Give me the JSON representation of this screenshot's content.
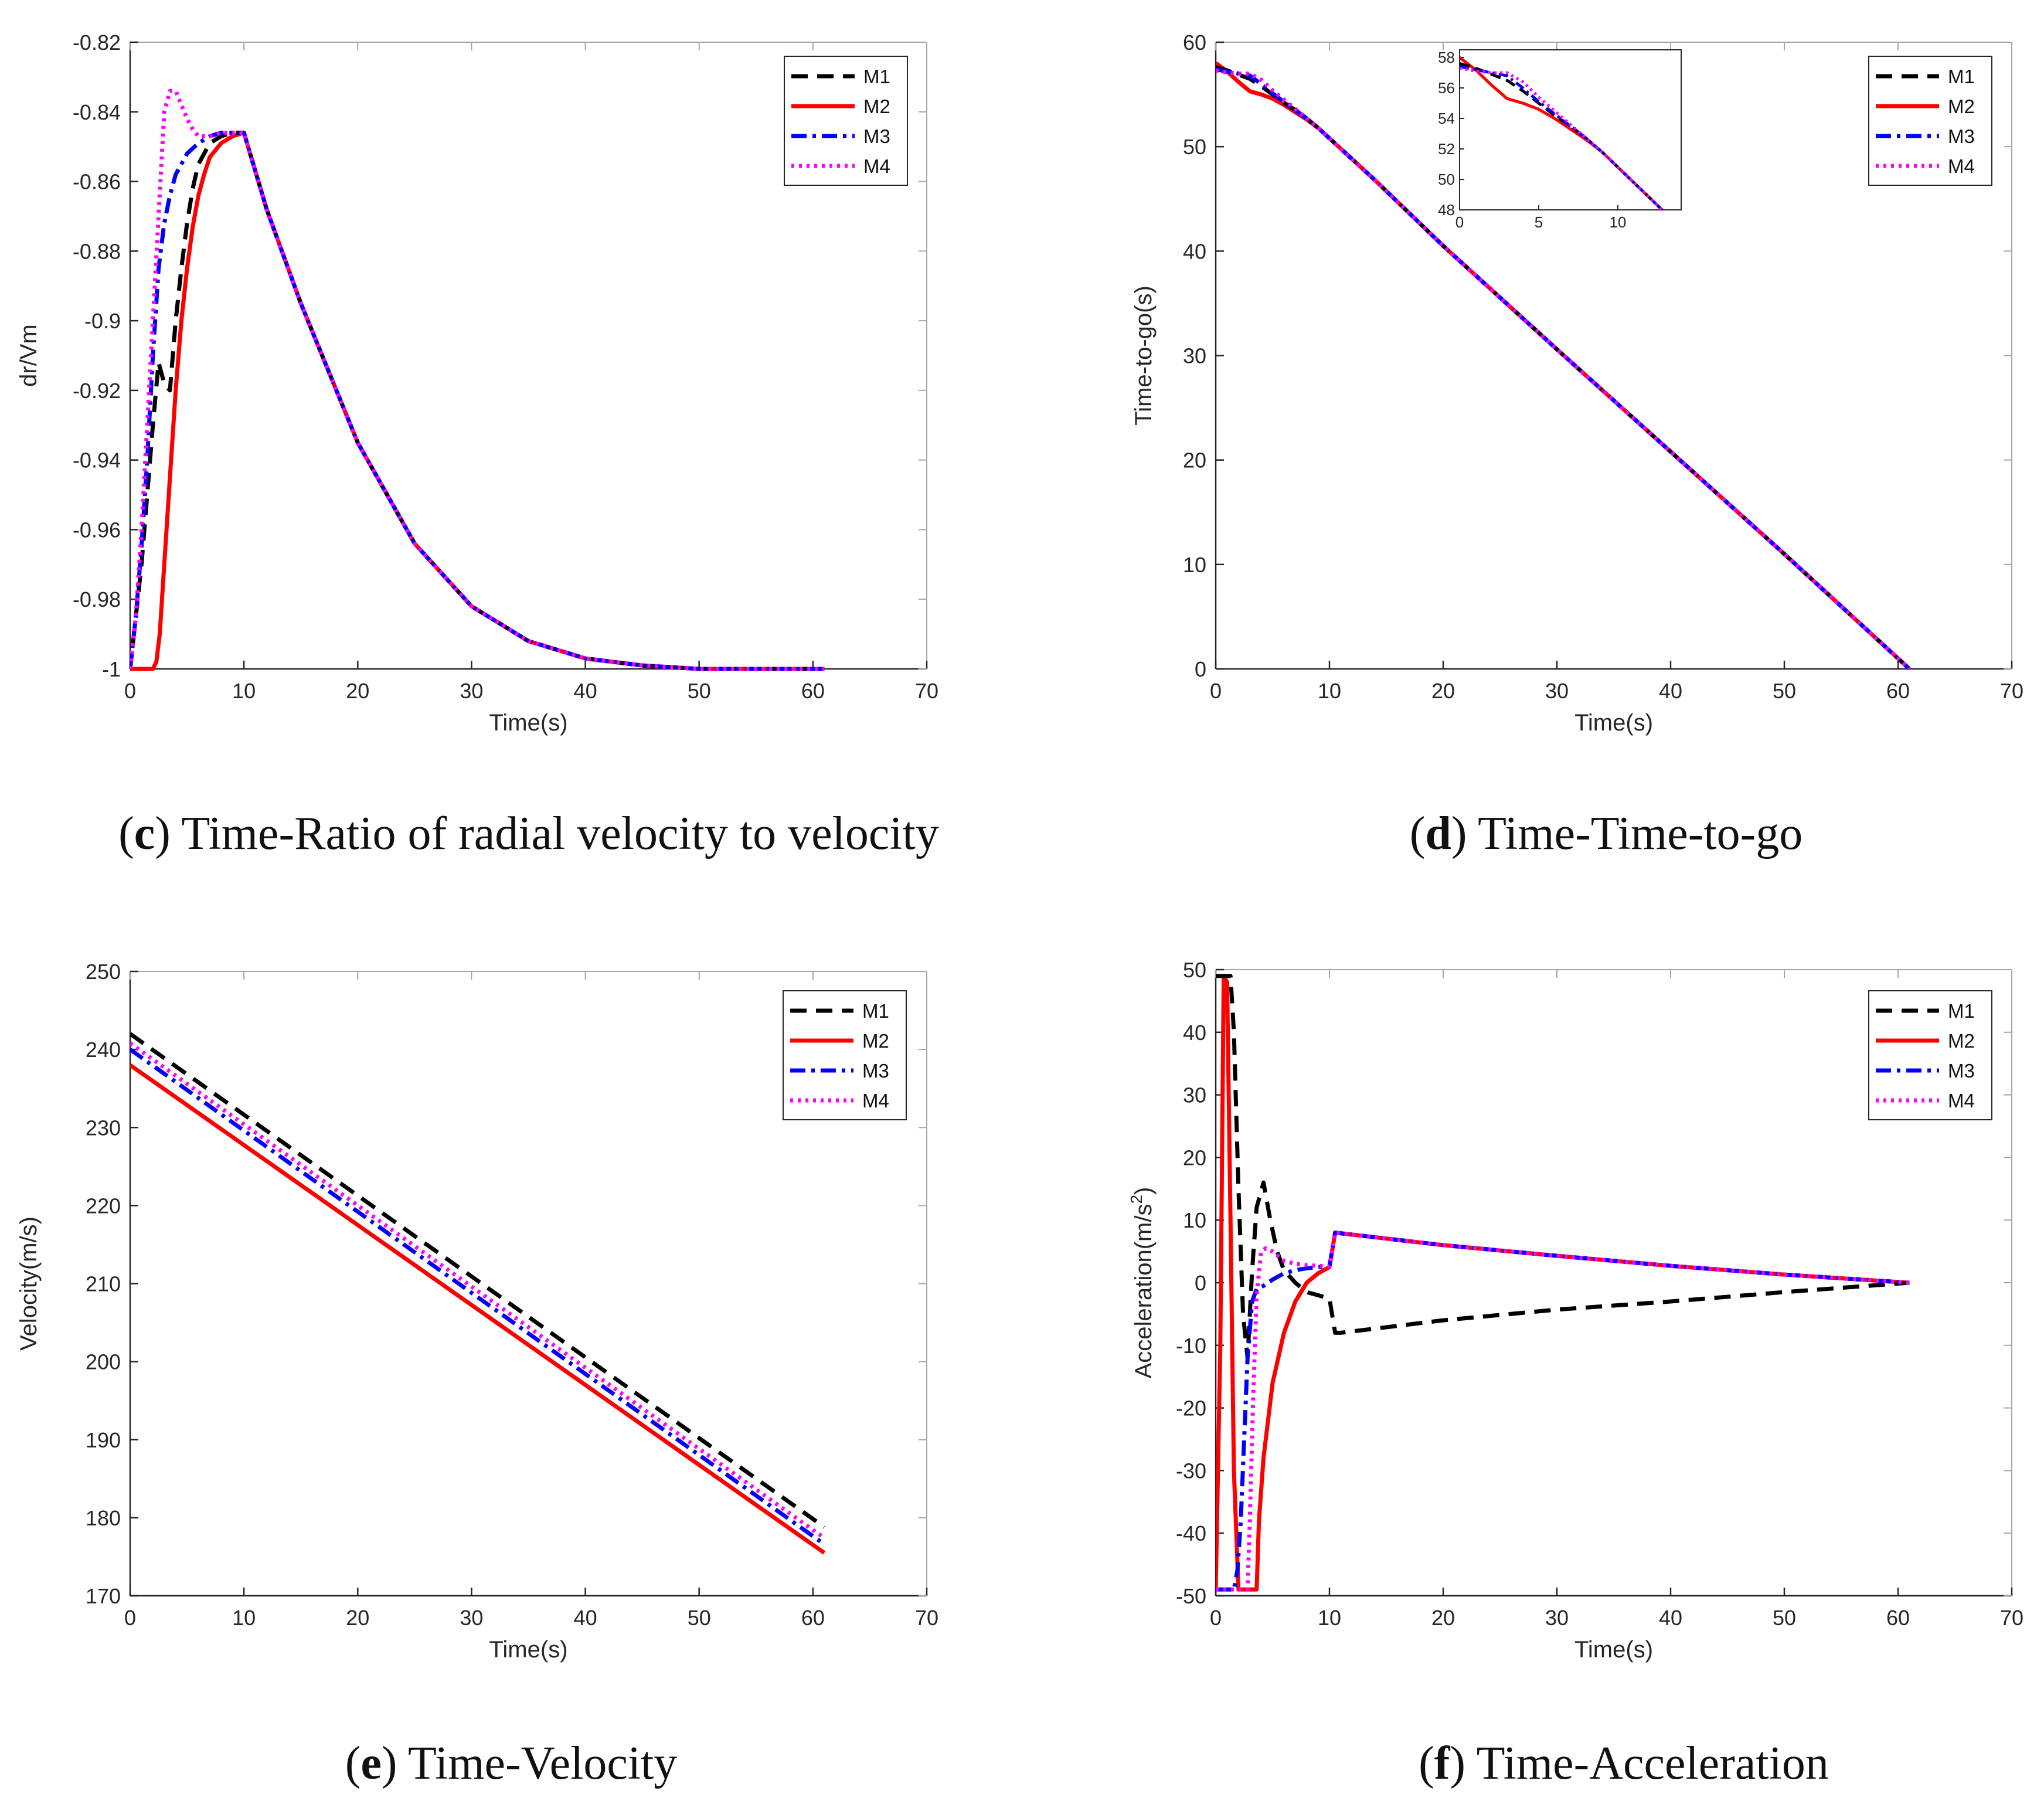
{
  "colors": {
    "M1": "#000000",
    "M2": "#ff0000",
    "M3": "#0000ff",
    "M4": "#ff00ff",
    "axis": "#262626",
    "spine": "#a6a6a6"
  },
  "chart_data": [
    {
      "id": "c",
      "type": "line",
      "caption_label": "c",
      "caption_text": "Time-Ratio of radial velocity to velocity",
      "xlabel": "Time(s)",
      "ylabel": "dr/Vm",
      "xlim": [
        0,
        70
      ],
      "ylim": [
        -1,
        -0.82
      ],
      "xticks": [
        0,
        10,
        20,
        30,
        40,
        50,
        60,
        70
      ],
      "xtick_labels": [
        "0",
        "10",
        "20",
        "30",
        "40",
        "50",
        "60",
        "70"
      ],
      "yticks": [
        -1,
        -0.98,
        -0.96,
        -0.94,
        -0.92,
        -0.9,
        -0.88,
        -0.86,
        -0.84,
        -0.82
      ],
      "ytick_labels": [
        "-1",
        "-0.98",
        "-0.96",
        "-0.94",
        "-0.92",
        "-0.9",
        "-0.88",
        "-0.86",
        "-0.84",
        "-0.82"
      ],
      "legend_position": "top-right",
      "series": [
        {
          "name": "M1",
          "style": "dashed",
          "x": [
            0,
            1,
            2,
            2.5,
            3,
            3.5,
            4,
            4.5,
            5,
            5.5,
            6,
            7,
            8,
            9,
            10,
            12,
            15,
            20,
            25,
            30,
            35,
            40,
            45,
            50,
            55,
            61
          ],
          "y": [
            -1,
            -0.97,
            -0.93,
            -0.912,
            -0.918,
            -0.92,
            -0.9,
            -0.885,
            -0.872,
            -0.862,
            -0.855,
            -0.849,
            -0.847,
            -0.846,
            -0.846,
            -0.868,
            -0.895,
            -0.935,
            -0.964,
            -0.982,
            -0.992,
            -0.997,
            -0.999,
            -1,
            -1,
            -1
          ]
        },
        {
          "name": "M2",
          "style": "solid",
          "x": [
            0,
            1,
            2,
            2.3,
            2.6,
            3,
            3.5,
            4,
            4.5,
            5,
            5.5,
            6,
            6.5,
            7,
            8,
            9,
            10,
            12,
            15,
            20,
            25,
            30,
            35,
            40,
            45,
            50,
            55,
            61
          ],
          "y": [
            -1,
            -1,
            -1,
            -0.998,
            -0.99,
            -0.97,
            -0.945,
            -0.92,
            -0.9,
            -0.885,
            -0.873,
            -0.864,
            -0.858,
            -0.853,
            -0.849,
            -0.847,
            -0.846,
            -0.868,
            -0.895,
            -0.935,
            -0.964,
            -0.982,
            -0.992,
            -0.997,
            -0.999,
            -1,
            -1,
            -1
          ]
        },
        {
          "name": "M3",
          "style": "dashdot",
          "x": [
            0,
            0.5,
            1,
            1.5,
            2,
            2.5,
            3,
            3.5,
            4,
            5,
            6,
            7,
            8,
            9,
            10,
            12,
            15,
            20,
            25,
            30,
            35,
            40,
            45,
            50,
            55,
            61
          ],
          "y": [
            -1,
            -0.985,
            -0.965,
            -0.94,
            -0.91,
            -0.885,
            -0.872,
            -0.864,
            -0.858,
            -0.852,
            -0.849,
            -0.847,
            -0.846,
            -0.846,
            -0.846,
            -0.868,
            -0.895,
            -0.935,
            -0.964,
            -0.982,
            -0.992,
            -0.997,
            -0.999,
            -1,
            -1,
            -1
          ]
        },
        {
          "name": "M4",
          "style": "dotted",
          "x": [
            0,
            0.5,
            1,
            1.5,
            2,
            2.5,
            3,
            3.5,
            4,
            4.5,
            5,
            5.5,
            6,
            7,
            8,
            9,
            10,
            12,
            15,
            20,
            25,
            30,
            35,
            40,
            45,
            50,
            55,
            61
          ],
          "y": [
            -1,
            -0.985,
            -0.96,
            -0.93,
            -0.9,
            -0.87,
            -0.84,
            -0.834,
            -0.834,
            -0.838,
            -0.842,
            -0.845,
            -0.847,
            -0.847,
            -0.846,
            -0.846,
            -0.846,
            -0.868,
            -0.895,
            -0.935,
            -0.964,
            -0.982,
            -0.992,
            -0.997,
            -0.999,
            -1,
            -1,
            -1
          ]
        }
      ]
    },
    {
      "id": "d",
      "type": "line",
      "caption_label": "d",
      "caption_text": "Time-Time-to-go",
      "xlabel": "Time(s)",
      "ylabel": "Time-to-go(s)",
      "xlim": [
        0,
        70
      ],
      "ylim": [
        0,
        60
      ],
      "xticks": [
        0,
        10,
        20,
        30,
        40,
        50,
        60,
        70
      ],
      "xtick_labels": [
        "0",
        "10",
        "20",
        "30",
        "40",
        "50",
        "60",
        "70"
      ],
      "yticks": [
        0,
        10,
        20,
        30,
        40,
        50,
        60
      ],
      "ytick_labels": [
        "0",
        "10",
        "20",
        "30",
        "40",
        "50",
        "60"
      ],
      "legend_position": "top-right",
      "series": [
        {
          "name": "M1",
          "style": "dashed",
          "x": [
            0,
            1,
            2,
            3,
            4,
            5,
            6,
            7,
            8,
            9,
            10,
            12,
            14,
            20,
            30,
            40,
            50,
            61
          ],
          "y": [
            57.6,
            57.3,
            56.9,
            56.5,
            55.8,
            55.0,
            54.2,
            53.5,
            52.7,
            51.8,
            50.8,
            48.8,
            46.8,
            40.5,
            30.6,
            20.8,
            11.0,
            0
          ]
        },
        {
          "name": "M2",
          "style": "solid",
          "x": [
            0,
            1,
            2,
            3,
            4,
            5,
            6,
            7,
            8,
            9,
            10,
            12,
            14,
            20,
            30,
            40,
            50,
            61
          ],
          "y": [
            58.0,
            57.2,
            56.2,
            55.3,
            55.0,
            54.6,
            54.0,
            53.3,
            52.6,
            51.8,
            50.8,
            48.8,
            46.8,
            40.5,
            30.6,
            20.8,
            11.0,
            0
          ]
        },
        {
          "name": "M3",
          "style": "dashdot",
          "x": [
            0,
            1,
            2,
            3,
            4,
            5,
            6,
            7,
            8,
            9,
            10,
            12,
            14,
            20,
            30,
            40,
            50,
            61
          ],
          "y": [
            57.4,
            57.2,
            57.0,
            56.8,
            56.0,
            55.1,
            54.3,
            53.5,
            52.7,
            51.8,
            50.8,
            48.8,
            46.8,
            40.5,
            30.6,
            20.8,
            11.0,
            0
          ]
        },
        {
          "name": "M4",
          "style": "dotted",
          "x": [
            0,
            1,
            2,
            3,
            4,
            5,
            6,
            7,
            8,
            9,
            10,
            12,
            14,
            20,
            30,
            40,
            50,
            61
          ],
          "y": [
            57.3,
            57.1,
            57.0,
            57.0,
            56.4,
            55.4,
            54.5,
            53.6,
            52.7,
            51.8,
            50.8,
            48.8,
            46.8,
            40.5,
            30.6,
            20.8,
            11.0,
            0
          ]
        }
      ],
      "inset": {
        "xlim": [
          0,
          14
        ],
        "ylim": [
          48,
          58.5
        ],
        "xticks": [
          0,
          5,
          10
        ],
        "xtick_labels": [
          "0",
          "5",
          "10"
        ],
        "yticks": [
          48,
          50,
          52,
          54,
          56,
          58
        ],
        "ytick_labels": [
          "48",
          "50",
          "52",
          "54",
          "56",
          "58"
        ]
      }
    },
    {
      "id": "e",
      "type": "line",
      "caption_label": "e",
      "caption_text": "Time-Velocity",
      "xlabel": "Time(s)",
      "ylabel": "Velocity(m/s)",
      "xlim": [
        0,
        70
      ],
      "ylim": [
        170,
        250
      ],
      "xticks": [
        0,
        10,
        20,
        30,
        40,
        50,
        60,
        70
      ],
      "xtick_labels": [
        "0",
        "10",
        "20",
        "30",
        "40",
        "50",
        "60",
        "70"
      ],
      "yticks": [
        170,
        180,
        190,
        200,
        210,
        220,
        230,
        240,
        250
      ],
      "ytick_labels": [
        "170",
        "180",
        "190",
        "200",
        "210",
        "220",
        "230",
        "240",
        "250"
      ],
      "legend_position": "top-right",
      "series": [
        {
          "name": "M1",
          "style": "dashed",
          "x": [
            0,
            61
          ],
          "y": [
            242,
            178.8
          ]
        },
        {
          "name": "M2",
          "style": "solid",
          "x": [
            0,
            61
          ],
          "y": [
            238,
            175.5
          ]
        },
        {
          "name": "M3",
          "style": "dashdot",
          "x": [
            0,
            61
          ],
          "y": [
            240,
            176.6
          ]
        },
        {
          "name": "M4",
          "style": "dotted",
          "x": [
            0,
            61
          ],
          "y": [
            240.8,
            177.4
          ]
        }
      ]
    },
    {
      "id": "f",
      "type": "line",
      "caption_label": "f",
      "caption_text": "Time-Acceleration",
      "xlabel": "Time(s)",
      "ylabel": "Acceleration(m/s",
      "ylabel_sup": "2",
      "ylabel_end": ")",
      "xlim": [
        0,
        70
      ],
      "ylim": [
        -50,
        50
      ],
      "xticks": [
        0,
        10,
        20,
        30,
        40,
        50,
        60,
        70
      ],
      "xtick_labels": [
        "0",
        "10",
        "20",
        "30",
        "40",
        "50",
        "60",
        "70"
      ],
      "yticks": [
        -50,
        -40,
        -30,
        -20,
        -10,
        0,
        10,
        20,
        30,
        40,
        50
      ],
      "ytick_labels": [
        "-50",
        "-40",
        "-30",
        "-20",
        "-10",
        "0",
        "10",
        "20",
        "30",
        "40",
        "50"
      ],
      "legend_position": "top-right",
      "series": [
        {
          "name": "M1",
          "style": "dashed",
          "x": [
            0,
            1.3,
            1.6,
            2.0,
            2.4,
            2.8,
            3.2,
            3.6,
            4.2,
            4.8,
            5.4,
            6.0,
            7,
            8,
            9,
            10,
            10.5,
            11,
            20,
            30,
            40,
            50,
            61
          ],
          "y": [
            49,
            49,
            40,
            15,
            -5,
            -12,
            2,
            12,
            16,
            10,
            5,
            2,
            0,
            -1.5,
            -2,
            -2.5,
            -8,
            -8,
            -6,
            -4.3,
            -3,
            -1.5,
            0
          ]
        },
        {
          "name": "M2",
          "style": "solid",
          "x": [
            0,
            0.4,
            0.7,
            1.0,
            1.3,
            1.6,
            2.0,
            3.6,
            3.8,
            4.2,
            5,
            6,
            7,
            8,
            9,
            10,
            10.5,
            20,
            30,
            40,
            50,
            61
          ],
          "y": [
            -49,
            -10,
            49,
            48,
            10,
            -30,
            -49,
            -49,
            -38,
            -28,
            -16,
            -8,
            -3,
            0,
            1.5,
            2.5,
            8,
            6,
            4.3,
            2.7,
            1.3,
            0
          ]
        },
        {
          "name": "M3",
          "style": "dashdot",
          "x": [
            0,
            1.6,
            1.9,
            2.2,
            2.5,
            2.8,
            3.2,
            3.6,
            4.2,
            5,
            6,
            7,
            8,
            9,
            10,
            10.5,
            20,
            30,
            40,
            50,
            61
          ],
          "y": [
            -49,
            -49,
            -46,
            -38,
            -25,
            -12,
            -3,
            -1,
            -0.5,
            0.5,
            1.5,
            2,
            2.3,
            2.5,
            2.6,
            8,
            6,
            4.3,
            2.7,
            1.3,
            0
          ]
        },
        {
          "name": "M4",
          "style": "dotted",
          "x": [
            0,
            2.8,
            3.0,
            3.3,
            3.6,
            4.0,
            4.4,
            5,
            6,
            7,
            8,
            9,
            10,
            10.5,
            20,
            30,
            40,
            50,
            61
          ],
          "y": [
            -49,
            -49,
            -38,
            -18,
            -2,
            5,
            5.5,
            5,
            3.5,
            3,
            2.8,
            2.7,
            2.6,
            8,
            6,
            4.3,
            2.7,
            1.3,
            0
          ]
        }
      ]
    }
  ]
}
